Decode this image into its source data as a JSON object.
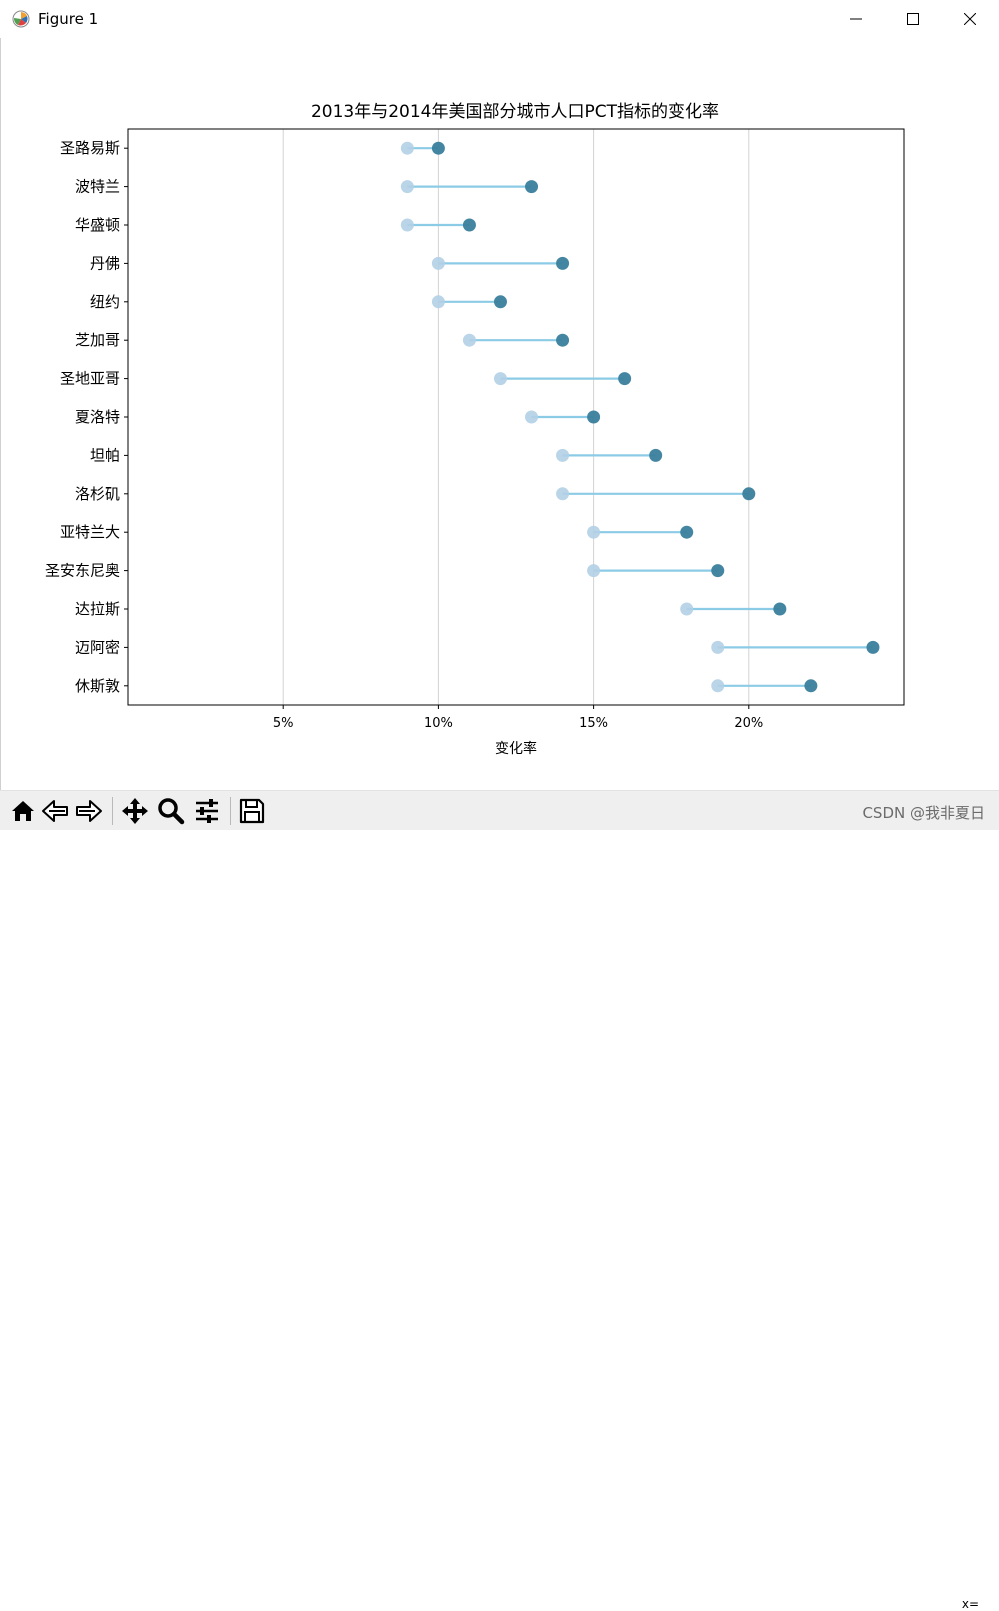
{
  "window": {
    "title": "Figure 1",
    "minimize_icon": "minimize-icon",
    "maximize_icon": "maximize-icon",
    "close_icon": "close-icon"
  },
  "toolbar": {
    "buttons": [
      {
        "name": "home-button",
        "icon": "home-icon"
      },
      {
        "name": "back-button",
        "icon": "back-arrow-icon"
      },
      {
        "name": "forward-button",
        "icon": "forward-arrow-icon"
      },
      {
        "name": "pan-button",
        "icon": "move-icon"
      },
      {
        "name": "zoom-button",
        "icon": "magnifier-icon"
      },
      {
        "name": "configure-subplots-button",
        "icon": "sliders-icon"
      },
      {
        "name": "save-button",
        "icon": "floppy-disk-icon"
      }
    ],
    "coordinates": "x="
  },
  "watermark": "CSDN @我非夏日",
  "colors": {
    "point_2013": "#b3cfe6",
    "point_2014": "#3a7f9c",
    "segment": "#8ccbe6",
    "grid": "#d3d3d3"
  },
  "chart_data": {
    "type": "dumbbell",
    "title": "2013年与2014年美国部分城市人口PCT指标的变化率",
    "xlabel": "变化率",
    "ylabel": "",
    "xlim": [
      0,
      25
    ],
    "xticks": [
      5,
      10,
      15,
      20
    ],
    "xtick_labels": [
      "5%",
      "10%",
      "15%",
      "20%"
    ],
    "grid": "vertical",
    "categories": [
      "圣路易斯",
      "波特兰",
      "华盛顿",
      "丹佛",
      "纽约",
      "芝加哥",
      "圣地亚哥",
      "夏洛特",
      "坦帕",
      "洛杉矶",
      "亚特兰大",
      "圣安东尼奥",
      "达拉斯",
      "迈阿密",
      "休斯敦"
    ],
    "series": [
      {
        "values": [
          9,
          9,
          9,
          10,
          10,
          11,
          12,
          13,
          14,
          14,
          15,
          15,
          18,
          19,
          19
        ]
      },
      {
        "values": [
          10,
          13,
          11,
          14,
          12,
          14,
          16,
          15,
          17,
          20,
          18,
          19,
          21,
          24,
          22
        ]
      }
    ]
  }
}
